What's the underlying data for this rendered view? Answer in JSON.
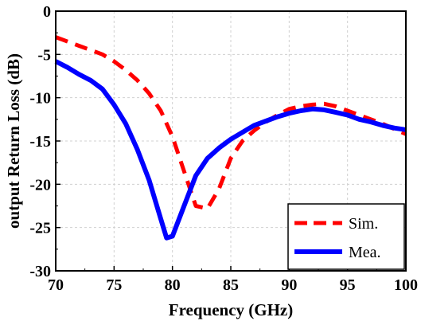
{
  "chart_data": {
    "type": "line",
    "title": "",
    "xlabel": "Frequency (GHz)",
    "ylabel": "output Return Loss (dB)",
    "xlim": [
      70,
      100
    ],
    "ylim": [
      -30,
      0
    ],
    "xticks": [
      70,
      75,
      80,
      85,
      90,
      95,
      100
    ],
    "yticks": [
      0,
      -5,
      -10,
      -15,
      -20,
      -25,
      -30
    ],
    "xtick_labels": [
      "70",
      "75",
      "80",
      "85",
      "90",
      "95",
      "100"
    ],
    "ytick_labels": [
      "0",
      "-5",
      "-10",
      "-15",
      "-20",
      "-25",
      "-30"
    ],
    "grid": true,
    "legend_position": "bottom-right",
    "series": [
      {
        "name": "Sim.",
        "style": "dashed",
        "color": "#ff0000",
        "x": [
          70,
          72,
          74,
          75,
          76,
          77,
          78,
          79,
          80,
          81,
          82,
          83,
          84,
          85,
          86,
          87,
          88,
          89,
          90,
          91,
          92,
          93,
          94,
          95,
          96,
          97,
          98,
          99,
          100
        ],
        "y": [
          -3.0,
          -4.0,
          -5.0,
          -5.8,
          -6.8,
          -8.0,
          -9.5,
          -11.5,
          -14.5,
          -18.5,
          -22.5,
          -22.8,
          -20.5,
          -17.0,
          -15.0,
          -13.8,
          -12.8,
          -12.0,
          -11.3,
          -11.0,
          -10.8,
          -10.7,
          -11.0,
          -11.5,
          -12.0,
          -12.5,
          -13.0,
          -13.6,
          -14.2
        ]
      },
      {
        "name": "Mea.",
        "style": "solid",
        "color": "#0000ff",
        "x": [
          70,
          71,
          72,
          73,
          74,
          75,
          76,
          77,
          78,
          79,
          79.5,
          80,
          81,
          82,
          83,
          84,
          85,
          86,
          87,
          88,
          89,
          90,
          91,
          92,
          93,
          94,
          95,
          96,
          97,
          98,
          99,
          100
        ],
        "y": [
          -5.8,
          -6.5,
          -7.3,
          -8.0,
          -9.0,
          -10.8,
          -13.0,
          -16.0,
          -19.5,
          -24.0,
          -26.2,
          -26.0,
          -22.5,
          -19.0,
          -17.0,
          -15.8,
          -14.8,
          -14.0,
          -13.2,
          -12.7,
          -12.2,
          -11.8,
          -11.5,
          -11.3,
          -11.4,
          -11.7,
          -12.0,
          -12.5,
          -12.8,
          -13.2,
          -13.5,
          -13.7
        ]
      }
    ]
  }
}
